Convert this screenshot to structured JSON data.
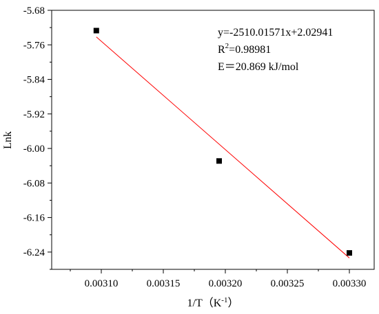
{
  "chart_data": {
    "type": "scatter",
    "xlabel": "1/T（K",
    "xlabel_sup": "-1",
    "xlabel_close": "）",
    "ylabel": "Lnk",
    "xlim": [
      0.00306,
      0.00332
    ],
    "ylim": [
      -6.28,
      -5.68
    ],
    "x_ticks": [
      0.0031,
      0.00315,
      0.0032,
      0.00325,
      0.0033
    ],
    "x_tick_labels": [
      "0.00310",
      "0.00315",
      "0.00320",
      "0.00325",
      "0.00330"
    ],
    "y_ticks": [
      -5.68,
      -5.76,
      -5.84,
      -5.92,
      -6.0,
      -6.08,
      -6.16,
      -6.24
    ],
    "y_tick_labels": [
      "-5.68",
      "-5.76",
      "-5.84",
      "-5.92",
      "-6.00",
      "-6.08",
      "-6.16",
      "-6.24"
    ],
    "series": [
      {
        "x": [
          0.003096,
          0.003195,
          0.0033
        ],
        "y": [
          -5.727,
          -6.029,
          -6.242
        ],
        "color": "#000000",
        "marker": "square"
      }
    ],
    "fit": {
      "slope": -2510.01571,
      "intercept": 2.02941,
      "x_range": [
        0.003096,
        0.0033
      ],
      "color": "#ff0000"
    },
    "annotations": {
      "equation": "y=-2510.01571x+2.02941",
      "r2_prefix": "R",
      "r2_sup": "2",
      "r2_value": "=0.98981",
      "energy": "E＝20.869 kJ/mol"
    },
    "grid": false
  }
}
